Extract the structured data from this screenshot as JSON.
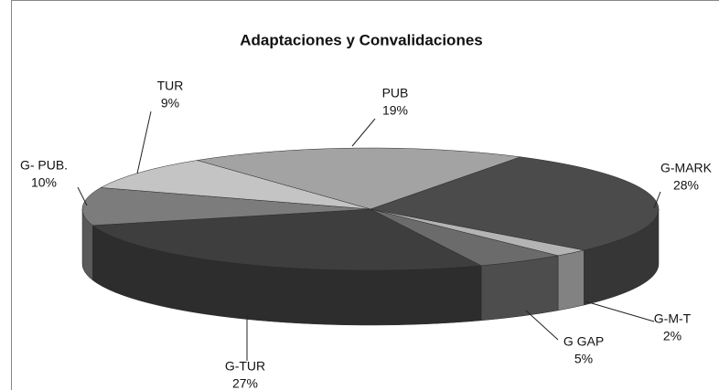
{
  "chart_data": {
    "type": "pie",
    "title": "Adaptaciones y Convalidaciones",
    "categories": [
      "PUB",
      "G-MARK",
      "G-M-T",
      "G GAP",
      "G-TUR",
      "G- PUB.",
      "TUR"
    ],
    "values": [
      19,
      28,
      2,
      5,
      27,
      10,
      9
    ],
    "value_labels": [
      "19%",
      "28%",
      "2%",
      "5%",
      "27%",
      "10%",
      "9%"
    ],
    "colors": [
      "#a3a3a3",
      "#4b4b4b",
      "#b4b4b4",
      "#6b6b6b",
      "#3e3e3e",
      "#7c7c7c",
      "#c4c4c4"
    ]
  }
}
